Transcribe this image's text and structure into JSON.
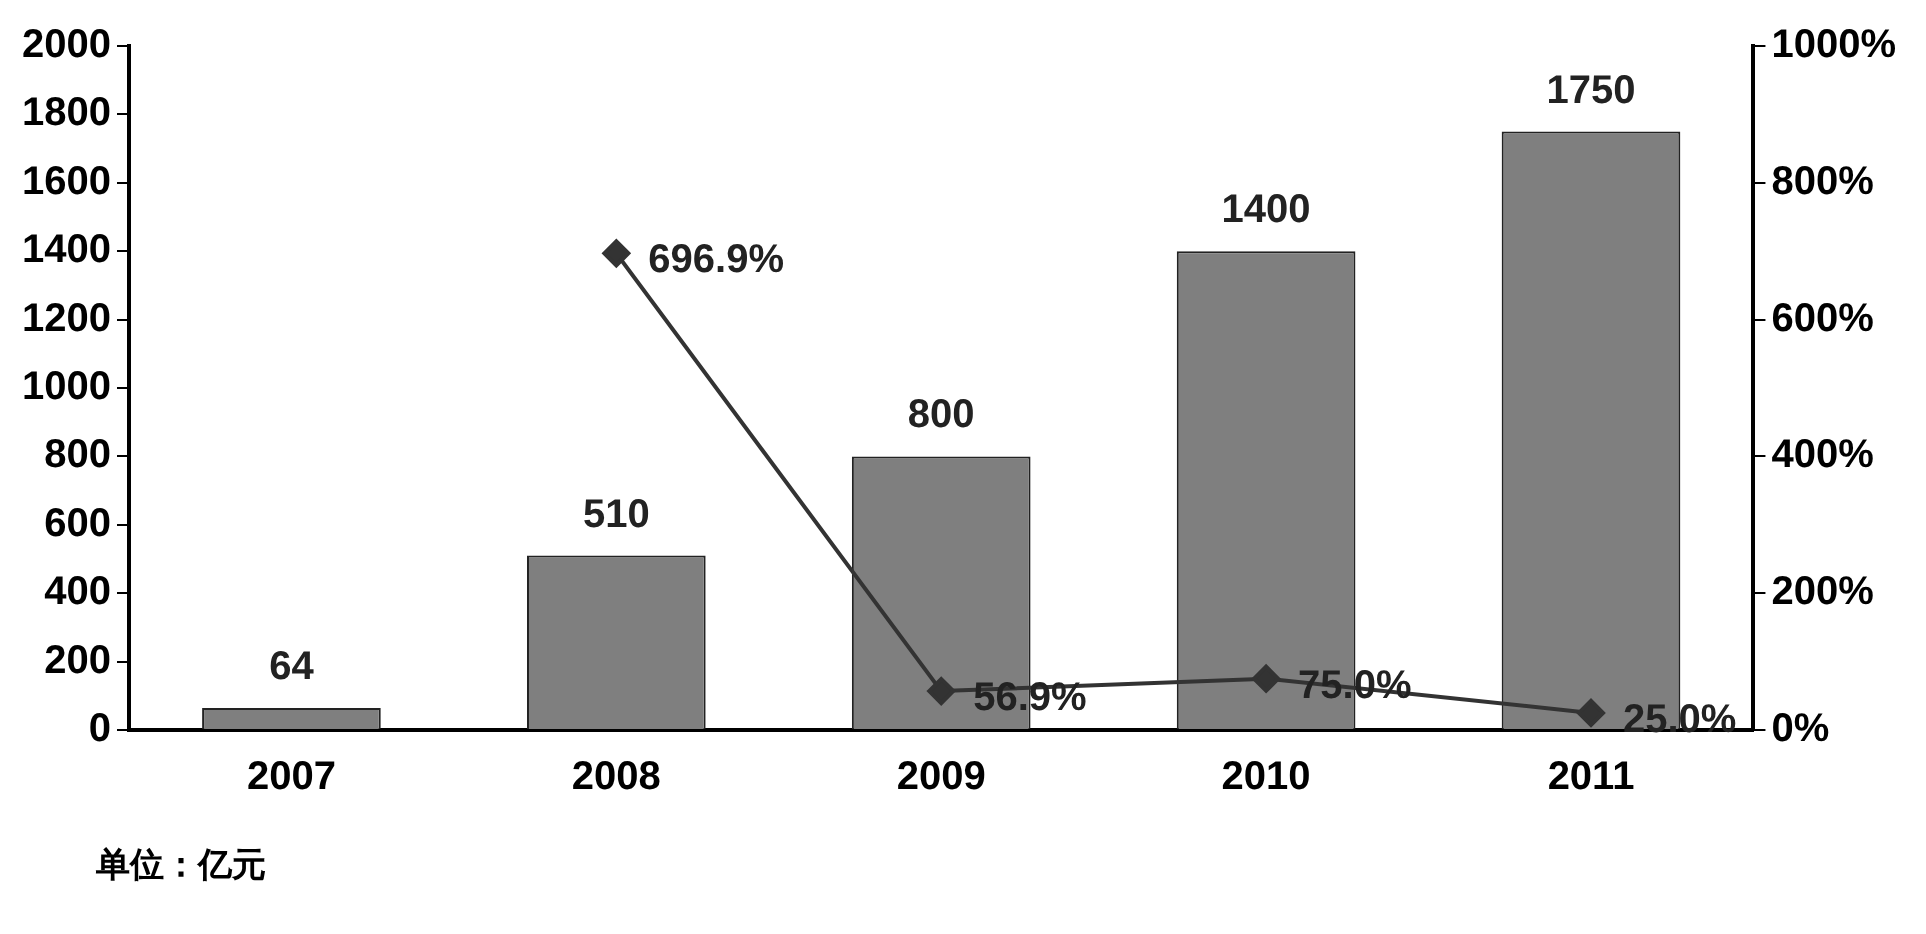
{
  "chart_data": {
    "type": "bar",
    "categories": [
      "2007",
      "2008",
      "2009",
      "2010",
      "2011"
    ],
    "series": [
      {
        "color": "#7f7f7f",
        "values": [
          64,
          510,
          800,
          1400,
          1750
        ],
        "value_labels": [
          "64",
          "510",
          "800",
          "1400",
          "1750"
        ]
      },
      {
        "type": "line",
        "axis": "y2",
        "color": "#333333",
        "values": [
          null,
          696.9,
          56.9,
          75.0,
          25.0
        ],
        "value_labels": [
          null,
          "696.9%",
          "56.9%",
          "75.0%",
          "25.0%"
        ]
      }
    ],
    "ylim": [
      0,
      2000
    ],
    "yticks": [
      0,
      200,
      400,
      600,
      800,
      1000,
      1200,
      1400,
      1600,
      1800,
      2000
    ],
    "y2lim": [
      0,
      1000
    ],
    "y2ticks": [
      {
        "value": 0,
        "label": "0%"
      },
      {
        "value": 200,
        "label": "200%"
      },
      {
        "value": 400,
        "label": "400%"
      },
      {
        "value": 600,
        "label": "600%"
      },
      {
        "value": 800,
        "label": "800%"
      },
      {
        "value": 1000,
        "label": "1000%"
      }
    ],
    "marker": "diamond",
    "grid": false,
    "legend": false,
    "annotations": [
      "单位：亿元"
    ]
  }
}
